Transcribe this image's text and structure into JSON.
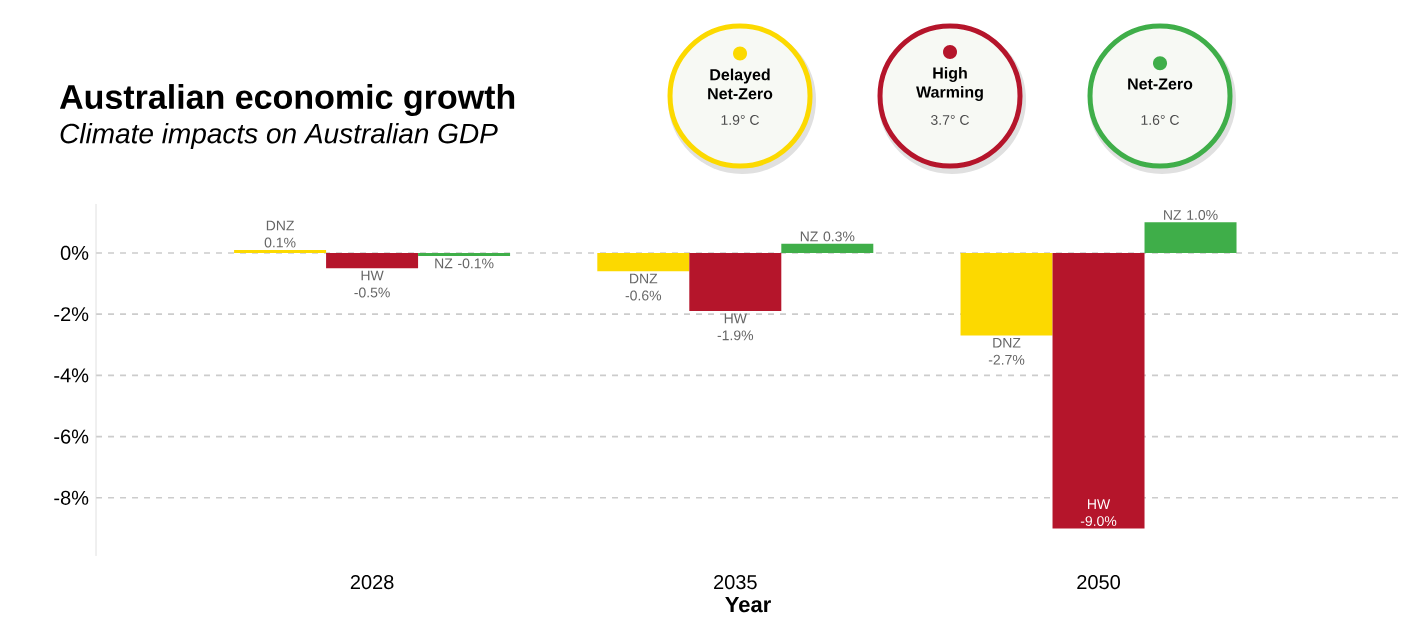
{
  "chart_data": {
    "type": "bar",
    "title": "Australian economic growth",
    "subtitle": "Climate impacts on Australian GDP",
    "xlabel": "Year",
    "categories": [
      "2028",
      "2035",
      "2050"
    ],
    "series": [
      {
        "name": "Delayed Net-Zero",
        "color": "#fcd900",
        "values": [
          0.1,
          -0.6,
          -2.7
        ],
        "value_labels": [
          "DNZ 0.1%",
          "DNZ -0.6%",
          "DNZ -2.7%"
        ]
      },
      {
        "name": "High Warming",
        "color": "#b5152b",
        "values": [
          -0.5,
          -1.9,
          -9.0
        ],
        "value_labels": [
          "HW -0.5%",
          "HW -1.9%",
          "HW -9.0%"
        ]
      },
      {
        "name": "Net-Zero",
        "color": "#3fae49",
        "values": [
          -0.1,
          0.3,
          1.0
        ],
        "value_labels": [
          "NZ -0.1%",
          "NZ 0.3%",
          "NZ 1.0%"
        ]
      }
    ],
    "annotations": [
      "1.9° C",
      "3.7° C",
      "1.6° C"
    ],
    "ylim": [
      -9.9,
      1.6
    ],
    "yticks": [
      {
        "value": -8,
        "label": "-8%"
      },
      {
        "value": -6,
        "label": "-6%"
      },
      {
        "value": -4,
        "label": "-4%"
      },
      {
        "value": -2,
        "label": "-2%"
      },
      {
        "value": 0,
        "label": "0%"
      }
    ],
    "grid": "y",
    "legend": "top"
  }
}
